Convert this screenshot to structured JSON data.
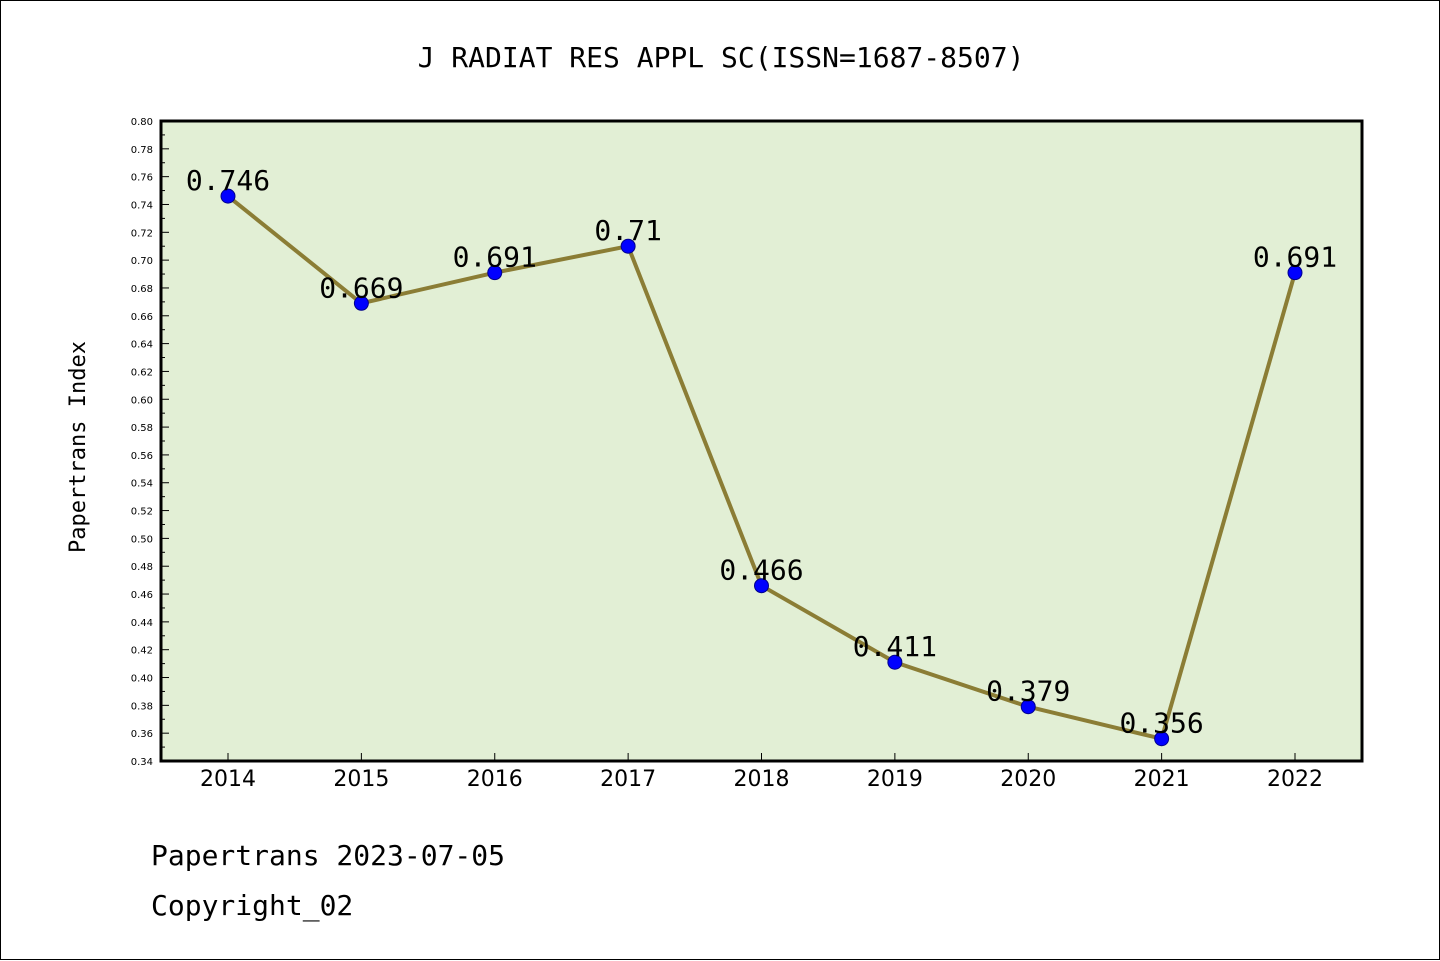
{
  "chart_data": {
    "type": "line",
    "title": "J RADIAT RES APPL SC(ISSN=1687-8507)",
    "xlabel": "",
    "ylabel": "Papertrans Index",
    "categories": [
      "2014",
      "2015",
      "2016",
      "2017",
      "2018",
      "2019",
      "2020",
      "2021",
      "2022"
    ],
    "series": [
      {
        "name": "Papertrans Index",
        "values": [
          0.746,
          0.669,
          0.691,
          0.71,
          0.466,
          0.411,
          0.379,
          0.356,
          0.691
        ],
        "labels": [
          "0.746",
          "0.669",
          "0.691",
          "0.71",
          "0.466",
          "0.411",
          "0.379",
          "0.356",
          "0.691"
        ]
      }
    ],
    "ylim": [
      0.34,
      0.8
    ],
    "yticks": [
      "0.34",
      "0.36",
      "0.38",
      "0.40",
      "0.42",
      "0.44",
      "0.46",
      "0.48",
      "0.50",
      "0.52",
      "0.54",
      "0.56",
      "0.58",
      "0.60",
      "0.62",
      "0.64",
      "0.66",
      "0.68",
      "0.70",
      "0.72",
      "0.74",
      "0.76",
      "0.78",
      "0.80"
    ],
    "grid": false,
    "colors": {
      "plot_bg": "#e2efd5",
      "line": "#8b7d35",
      "marker": "#0000ff"
    }
  },
  "footer": {
    "date_line": "Papertrans 2023-07-05",
    "copyright": "Copyright_02"
  }
}
